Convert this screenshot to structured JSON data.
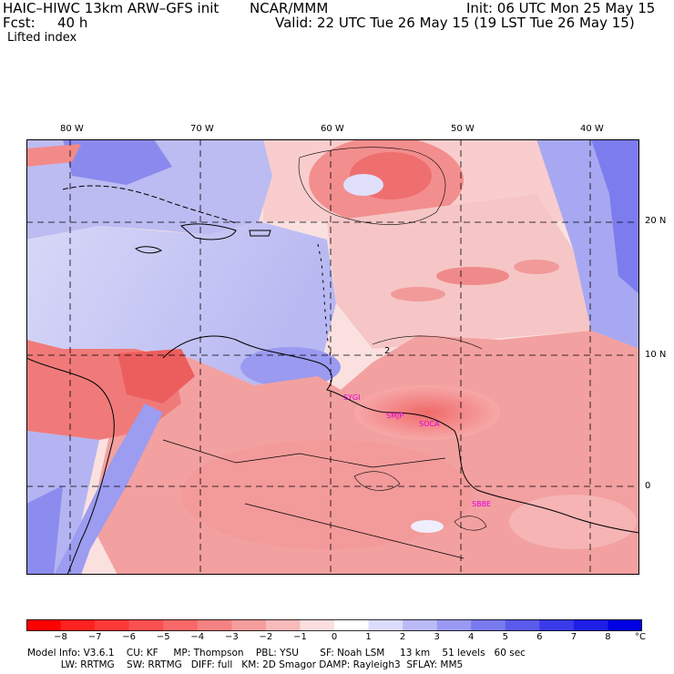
{
  "header": {
    "model_title": "HAIC–HIWC 13km ARW–GFS init",
    "org": "NCAR/MMM",
    "init": "Init: 06 UTC Mon 25 May 15",
    "fcst_label": "Fcst:",
    "fcst_value": "40 h",
    "valid": "Valid: 22 UTC Tue 26 May 15 (19 LST Tue 26 May 15)",
    "field": "Lifted index"
  },
  "map": {
    "lon_labels": [
      "80 W",
      "70 W",
      "60 W",
      "50 W",
      "40 W"
    ],
    "lat_labels": [
      "20 N",
      "10 N",
      "0"
    ],
    "stations": [
      "SYGI",
      "SMJP",
      "SOCA",
      "SBBE"
    ],
    "contour_label": "2"
  },
  "legend": {
    "ticks": [
      "−8",
      "−7",
      "−6",
      "−5",
      "−4",
      "−3",
      "−2",
      "−1",
      "0",
      "1",
      "2",
      "3",
      "4",
      "5",
      "6",
      "7",
      "8"
    ],
    "unit": "°C",
    "colors": [
      "#ff0000",
      "#ff2020",
      "#ff3838",
      "#fa5050",
      "#f86868",
      "#f58282",
      "#f59c9c",
      "#f8baba",
      "#fcdede",
      "#ffffff",
      "#dcdcfc",
      "#babaf8",
      "#9a9af4",
      "#7a7af0",
      "#5a5aec",
      "#3a3ae8",
      "#1e1ee6",
      "#0000e4"
    ]
  },
  "footer": {
    "line1": "Model Info: V3.6.1    CU: KF     MP: Thompson    PBL: YSU       SF: Noah LSM     13 km    51 levels   60 sec",
    "line2": "           LW: RRTMG    SW: RRTMG   DIFF: full   KM: 2D Smagor DAMP: Rayleigh3  SFLAY: MM5"
  }
}
